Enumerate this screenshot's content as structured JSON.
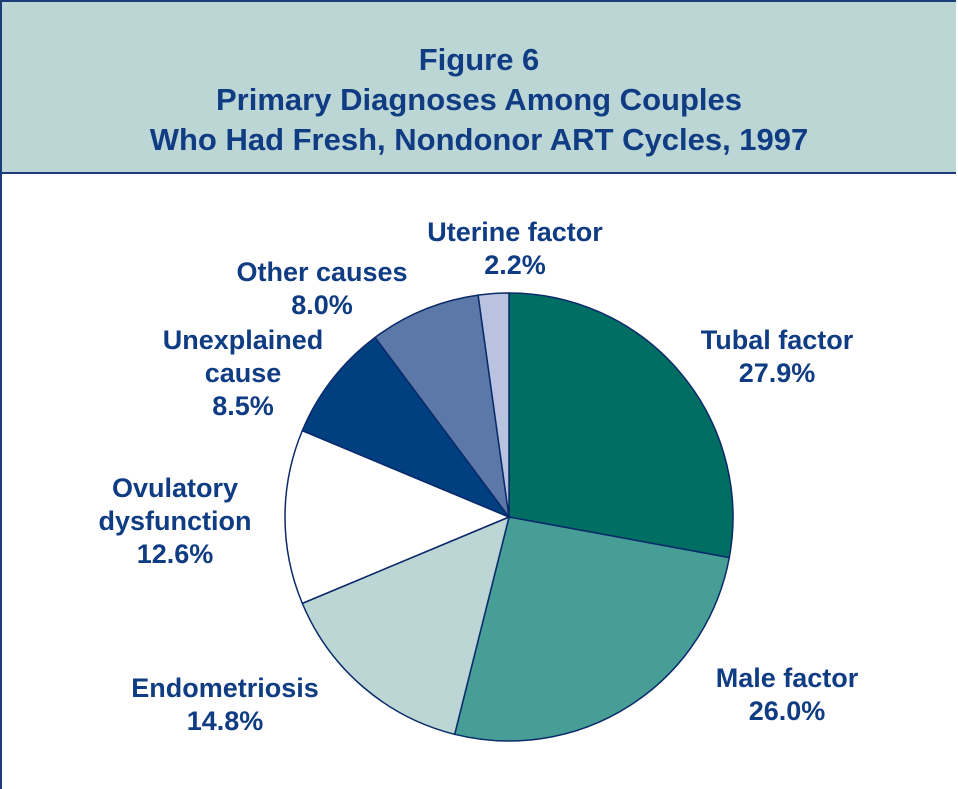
{
  "chart_data": {
    "type": "pie",
    "title": "Figure 6",
    "subtitle": [
      "Primary Diagnoses Among Couples",
      "Who Had Fresh, Nondonor ART Cycles, 1997"
    ],
    "categories": [
      "Tubal factor",
      "Male factor",
      "Endometriosis",
      "Ovulatory dysfunction",
      "Unexplained cause",
      "Other causes",
      "Uterine factor"
    ],
    "values": [
      27.9,
      26.0,
      14.8,
      12.6,
      8.5,
      8.0,
      2.2
    ],
    "value_labels": [
      "27.9%",
      "26.0%",
      "14.8%",
      "12.6%",
      "8.5%",
      "8.0%",
      "2.2%"
    ],
    "colors": [
      "#006e63",
      "#469e96",
      "#bcd6d6",
      "#ffffff",
      "#003f80",
      "#5b78a8",
      "#b9c3e0"
    ]
  }
}
